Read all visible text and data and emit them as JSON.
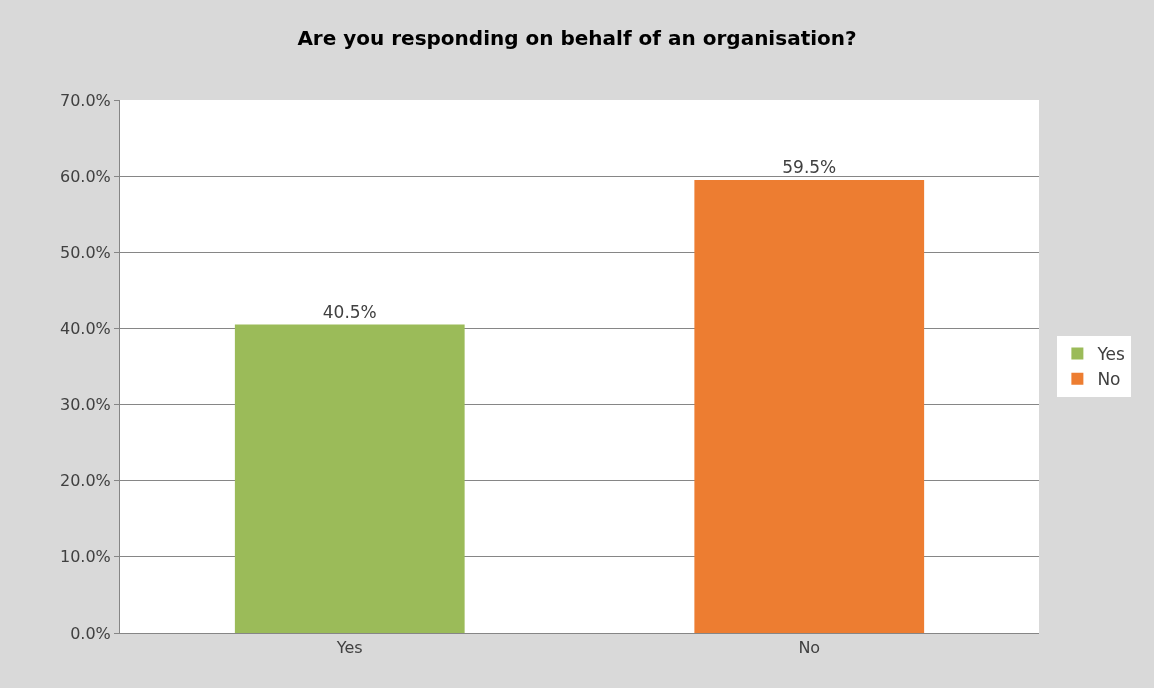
{
  "chart_data": {
    "type": "bar",
    "title": "Are you responding on behalf of an organisation?",
    "categories": [
      "Yes",
      "No"
    ],
    "series": [
      {
        "name": "Yes",
        "color": "#9bbb59",
        "values": [
          40.5,
          null
        ],
        "value_labels": [
          "40.5%",
          null
        ]
      },
      {
        "name": "No",
        "color": "#ed7d31",
        "values": [
          null,
          59.5
        ],
        "value_labels": [
          null,
          "59.5%"
        ]
      }
    ],
    "ylim": [
      0,
      70
    ],
    "yticks": [
      {
        "value": 0,
        "label": "0.0%"
      },
      {
        "value": 10,
        "label": "10.0%"
      },
      {
        "value": 20,
        "label": "20.0%"
      },
      {
        "value": 30,
        "label": "30.0%"
      },
      {
        "value": 40,
        "label": "40.0%"
      },
      {
        "value": 50,
        "label": "50.0%"
      },
      {
        "value": 60,
        "label": "60.0%"
      },
      {
        "value": 70,
        "label": "70.0%"
      }
    ],
    "grid": "y",
    "legend": "right"
  }
}
